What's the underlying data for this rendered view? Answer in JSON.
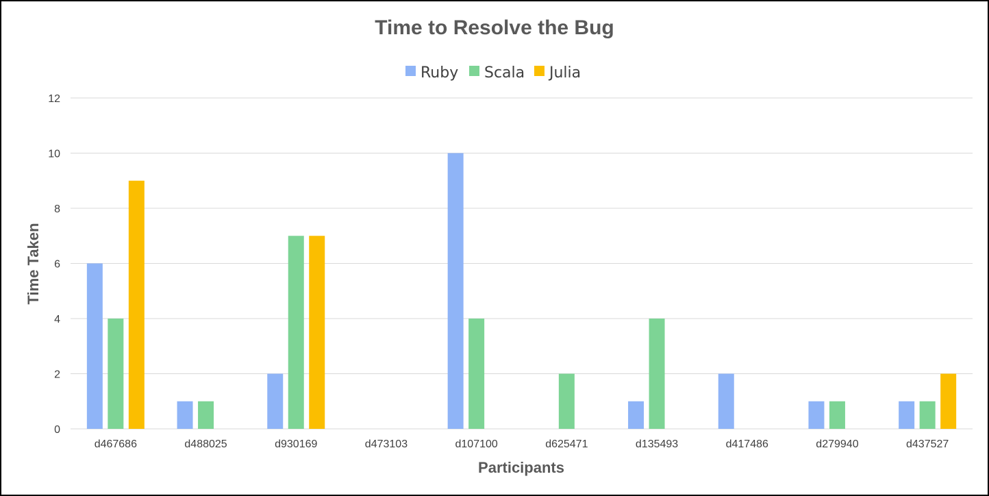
{
  "chart_data": {
    "type": "bar",
    "title": "Time to Resolve the Bug",
    "xlabel": "Participants",
    "ylabel": "Time Taken",
    "ylim": [
      0,
      12
    ],
    "yticks": [
      0,
      2,
      4,
      6,
      8,
      10,
      12
    ],
    "grid": true,
    "legend_position": "top",
    "categories": [
      "d467686",
      "d488025",
      "d930169",
      "d473103",
      "d107100",
      "d625471",
      "d135493",
      "d417486",
      "d279940",
      "d437527"
    ],
    "series": [
      {
        "name": "Ruby",
        "color": "#8fb4f7",
        "values": [
          6,
          1,
          2,
          0,
          10,
          0,
          1,
          2,
          1,
          1
        ]
      },
      {
        "name": "Scala",
        "color": "#7dd495",
        "values": [
          4,
          1,
          7,
          0,
          4,
          2,
          4,
          0,
          1,
          1
        ]
      },
      {
        "name": "Julia",
        "color": "#fbbe00",
        "values": [
          9,
          0,
          7,
          0,
          0,
          0,
          0,
          0,
          0,
          2
        ]
      }
    ]
  }
}
